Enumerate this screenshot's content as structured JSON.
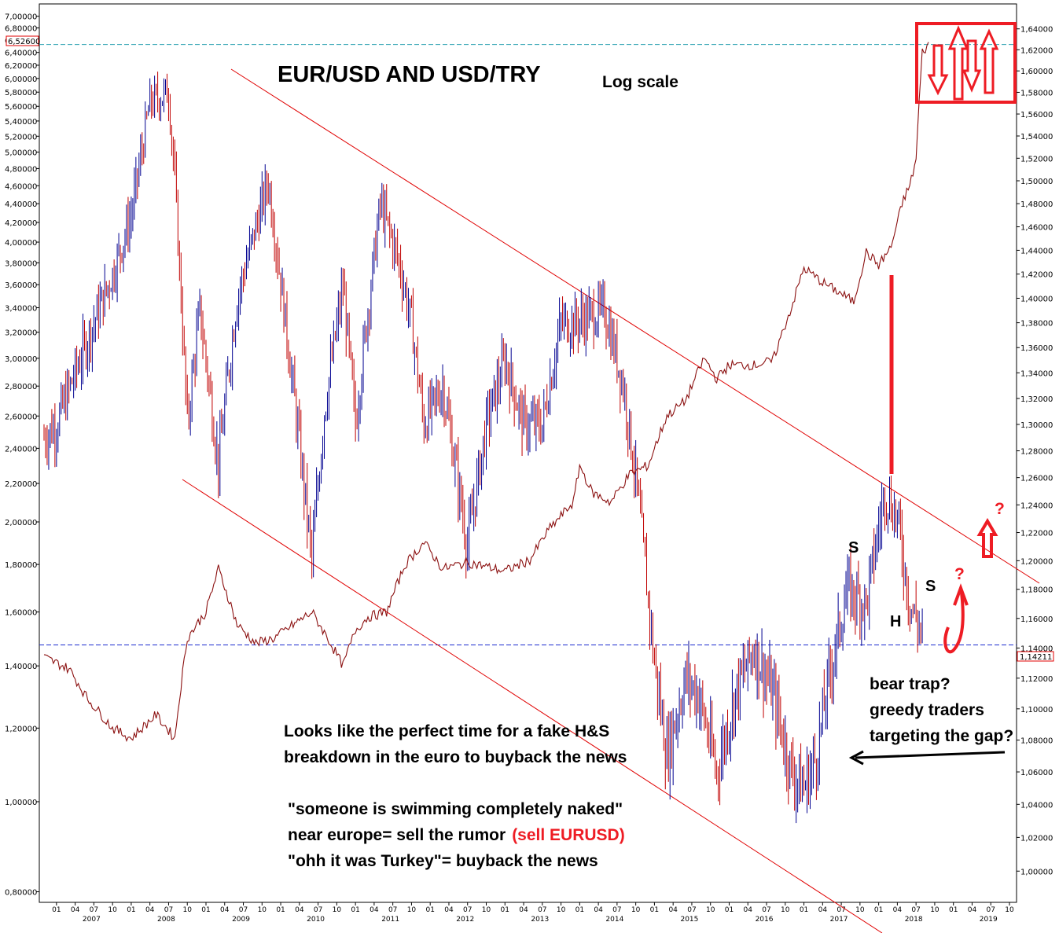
{
  "title": "EUR/USD AND USD/TRY",
  "subtitle": "Log scale",
  "chart_data": {
    "type": "line",
    "title": "EUR/USD AND USD/TRY",
    "subtitle": "Log scale",
    "x_range": [
      "2006-11",
      "2019-10"
    ],
    "left_axis": {
      "scale": "log",
      "range": [
        0.79,
        7.05
      ],
      "ticks": [
        "0,80000",
        "1,00000",
        "1,20000",
        "1,40000",
        "1,60000",
        "1,80000",
        "2,00000",
        "2,20000",
        "2,40000",
        "2,60000",
        "2,80000",
        "3,00000",
        "3,20000",
        "3,40000",
        "3,60000",
        "3,80000",
        "4,00000",
        "4,20000",
        "4,40000",
        "4,60000",
        "4,80000",
        "5,00000",
        "5,20000",
        "5,40000",
        "5,60000",
        "5,80000",
        "6,00000",
        "6,20000",
        "6,40000",
        "6,60000",
        "6,80000",
        "7,00000"
      ],
      "last_value_label": "6,52600"
    },
    "right_axis": {
      "scale": "log",
      "range": [
        0.985,
        1.655
      ],
      "ticks": [
        "1,00000",
        "1,02000",
        "1,04000",
        "1,06000",
        "1,08000",
        "1,10000",
        "1,12000",
        "1,14000",
        "1,16000",
        "1,18000",
        "1,20000",
        "1,22000",
        "1,24000",
        "1,26000",
        "1,28000",
        "1,30000",
        "1,32000",
        "1,34000",
        "1,36000",
        "1,38000",
        "1,40000",
        "1,42000",
        "1,44000",
        "1,46000",
        "1,48000",
        "1,50000",
        "1,52000",
        "1,54000",
        "1,56000",
        "1,58000",
        "1,60000",
        "1,62000",
        "1,64000"
      ],
      "last_value_label": "1,14211"
    },
    "x_month_ticks": [
      "01",
      "04",
      "07",
      "10"
    ],
    "x_year_labels": [
      "2007",
      "2008",
      "2009",
      "2010",
      "2011",
      "2012",
      "2013",
      "2014",
      "2015",
      "2016",
      "2017",
      "2018",
      "2019"
    ],
    "series": [
      {
        "name": "EUR/USD",
        "axis": "right",
        "style": "ohlc-bars",
        "points": [
          [
            "2006-11",
            1.29
          ],
          [
            "2007-01",
            1.3
          ],
          [
            "2007-04",
            1.34
          ],
          [
            "2007-07",
            1.38
          ],
          [
            "2007-10",
            1.42
          ],
          [
            "2008-01",
            1.47
          ],
          [
            "2008-04",
            1.57
          ],
          [
            "2008-07",
            1.58
          ],
          [
            "2008-08",
            1.5
          ],
          [
            "2008-10",
            1.3
          ],
          [
            "2008-12",
            1.39
          ],
          [
            "2009-03",
            1.27
          ],
          [
            "2009-06",
            1.4
          ],
          [
            "2009-09",
            1.46
          ],
          [
            "2009-11",
            1.5
          ],
          [
            "2010-02",
            1.37
          ],
          [
            "2010-06",
            1.2
          ],
          [
            "2010-08",
            1.31
          ],
          [
            "2010-11",
            1.41
          ],
          [
            "2011-01",
            1.3
          ],
          [
            "2011-05",
            1.48
          ],
          [
            "2011-08",
            1.43
          ],
          [
            "2011-10",
            1.38
          ],
          [
            "2011-12",
            1.3
          ],
          [
            "2012-03",
            1.33
          ],
          [
            "2012-07",
            1.21
          ],
          [
            "2012-10",
            1.3
          ],
          [
            "2013-01",
            1.35
          ],
          [
            "2013-04",
            1.3
          ],
          [
            "2013-07",
            1.3
          ],
          [
            "2013-10",
            1.38
          ],
          [
            "2013-12",
            1.38
          ],
          [
            "2014-05",
            1.39
          ],
          [
            "2014-08",
            1.33
          ],
          [
            "2014-10",
            1.26
          ],
          [
            "2015-01",
            1.13
          ],
          [
            "2015-03",
            1.07
          ],
          [
            "2015-06",
            1.12
          ],
          [
            "2015-08",
            1.11
          ],
          [
            "2015-11",
            1.06
          ],
          [
            "2016-02",
            1.11
          ],
          [
            "2016-05",
            1.14
          ],
          [
            "2016-08",
            1.11
          ],
          [
            "2016-11",
            1.06
          ],
          [
            "2017-01",
            1.05
          ],
          [
            "2017-03",
            1.07
          ],
          [
            "2017-05",
            1.12
          ],
          [
            "2017-08",
            1.18
          ],
          [
            "2017-11",
            1.17
          ],
          [
            "2018-02",
            1.25
          ],
          [
            "2018-04",
            1.23
          ],
          [
            "2018-06",
            1.17
          ],
          [
            "2018-08",
            1.15
          ]
        ]
      },
      {
        "name": "USD/TRY",
        "axis": "left",
        "style": "line",
        "points": [
          [
            "2006-11",
            1.43
          ],
          [
            "2007-03",
            1.39
          ],
          [
            "2007-06",
            1.29
          ],
          [
            "2007-10",
            1.2
          ],
          [
            "2008-01",
            1.17
          ],
          [
            "2008-05",
            1.24
          ],
          [
            "2008-08",
            1.17
          ],
          [
            "2008-10",
            1.5
          ],
          [
            "2009-01",
            1.6
          ],
          [
            "2009-03",
            1.78
          ],
          [
            "2009-06",
            1.55
          ],
          [
            "2009-09",
            1.48
          ],
          [
            "2009-12",
            1.5
          ],
          [
            "2010-03",
            1.55
          ],
          [
            "2010-06",
            1.6
          ],
          [
            "2010-09",
            1.48
          ],
          [
            "2010-11",
            1.4
          ],
          [
            "2011-01",
            1.53
          ],
          [
            "2011-03",
            1.58
          ],
          [
            "2011-06",
            1.6
          ],
          [
            "2011-09",
            1.8
          ],
          [
            "2011-12",
            1.9
          ],
          [
            "2012-03",
            1.78
          ],
          [
            "2012-07",
            1.81
          ],
          [
            "2012-10",
            1.79
          ],
          [
            "2013-01",
            1.77
          ],
          [
            "2013-05",
            1.82
          ],
          [
            "2013-08",
            1.96
          ],
          [
            "2013-12",
            2.1
          ],
          [
            "2014-01",
            2.3
          ],
          [
            "2014-03",
            2.15
          ],
          [
            "2014-06",
            2.1
          ],
          [
            "2014-09",
            2.25
          ],
          [
            "2014-12",
            2.3
          ],
          [
            "2015-03",
            2.6
          ],
          [
            "2015-06",
            2.7
          ],
          [
            "2015-09",
            3.0
          ],
          [
            "2015-11",
            2.85
          ],
          [
            "2016-01",
            2.95
          ],
          [
            "2016-05",
            2.95
          ],
          [
            "2016-08",
            2.98
          ],
          [
            "2016-11",
            3.4
          ],
          [
            "2017-01",
            3.75
          ],
          [
            "2017-04",
            3.62
          ],
          [
            "2017-07",
            3.52
          ],
          [
            "2017-09",
            3.45
          ],
          [
            "2017-11",
            3.9
          ],
          [
            "2018-01",
            3.78
          ],
          [
            "2018-03",
            3.95
          ],
          [
            "2018-05",
            4.45
          ],
          [
            "2018-06",
            4.6
          ],
          [
            "2018-07",
            4.9
          ],
          [
            "2018-08",
            6.4
          ],
          [
            "2018-09",
            6.52
          ]
        ]
      }
    ],
    "annotations": [
      "S",
      "H",
      "S",
      "?",
      "?",
      "bear trap?",
      "greedy traders",
      "targeting the gap?",
      "Looks like the perfect time for a fake H&S",
      "breakdown in the euro to buyback the news",
      "\"someone is swimming completely naked\"",
      "near europe= sell the rumor",
      "(sell EURUSD)",
      "\"ohh it was Turkey\"= buyback the news"
    ],
    "grid": false,
    "legend": "none"
  },
  "colors": {
    "eurusd_down": "#c00000",
    "eurusd_up": "#000090",
    "usdtry": "#8b1010",
    "trendline": "#e00000",
    "markup": "#ee1c24",
    "reference_top": "#2aa0b0",
    "reference_bottom": "#1a2ad0"
  },
  "annotations": {
    "s_left": "S",
    "head": "H",
    "s_right": "S",
    "question_1": "?",
    "question_2": "?",
    "bear_trap_1": "bear trap?",
    "bear_trap_2": "greedy traders",
    "bear_trap_3": "targeting the gap?",
    "note_1": "Looks like the perfect time for a fake H&S",
    "note_2": "breakdown in the euro to buyback the news",
    "note_3": "\"someone is swimming completely naked\"",
    "note_4a": "near europe= sell the rumor",
    "note_4b": "(sell EURUSD)",
    "note_5": "\"ohh it was Turkey\"= buyback the news"
  }
}
